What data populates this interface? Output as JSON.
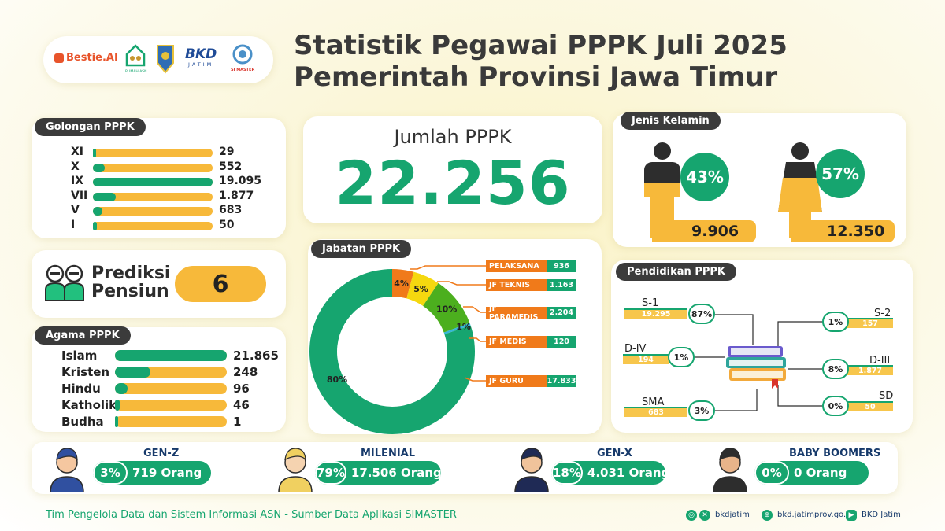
{
  "header": {
    "title_line1": "Statistik Pegawai PPPK Juli 2025",
    "title_line2": "Pemerintah Provinsi Jawa Timur",
    "logos": {
      "bestie": "Bestie.AI",
      "rumah_asn": "RUMAH ASN",
      "bkd_top": "BKD",
      "bkd_bottom": "JATIM",
      "simaster": "SI MASTER"
    }
  },
  "golongan": {
    "tag": "Golongan PPPK",
    "items": [
      {
        "label": "XI",
        "value": "29",
        "fraction": 0.01
      },
      {
        "label": "X",
        "value": "552",
        "fraction": 0.1
      },
      {
        "label": "IX",
        "value": "19.095",
        "fraction": 1.0
      },
      {
        "label": "VII",
        "value": "1.877",
        "fraction": 0.19
      },
      {
        "label": "V",
        "value": "683",
        "fraction": 0.08
      },
      {
        "label": "I",
        "value": "50",
        "fraction": 0.03
      }
    ]
  },
  "jumlah": {
    "label": "Jumlah PPPK",
    "value": "22.256"
  },
  "gender": {
    "tag": "Jenis Kelamin",
    "male": {
      "pct": "43%",
      "count": "9.906",
      "icon": "male-person-icon"
    },
    "female": {
      "pct": "57%",
      "count": "12.350",
      "icon": "female-person-icon"
    }
  },
  "pensiun": {
    "line1": "Prediksi",
    "line2": "Pensiun",
    "value": "6",
    "icon": "retirees-icon"
  },
  "jabatan": {
    "tag": "Jabatan PPPK",
    "items": [
      {
        "label": "PELAKSANA",
        "value": "936"
      },
      {
        "label": "JF TEKNIS",
        "value": "1.163"
      },
      {
        "label": "JF PARAMEDIS",
        "value": "2.204"
      },
      {
        "label": "JF MEDIS",
        "value": "120"
      },
      {
        "label": "JF GURU",
        "value": "17.833"
      }
    ]
  },
  "agama": {
    "tag": "Agama PPPK",
    "items": [
      {
        "label": "Islam",
        "value": "21.865",
        "fraction": 1.0
      },
      {
        "label": "Kristen",
        "value": "248",
        "fraction": 0.32
      },
      {
        "label": "Hindu",
        "value": "96",
        "fraction": 0.11
      },
      {
        "label": "Katholik",
        "value": "46",
        "fraction": 0.04
      },
      {
        "label": "Budha",
        "value": "1",
        "fraction": 0.0
      }
    ]
  },
  "pendidikan": {
    "tag": "Pendidikan PPPK",
    "left": [
      {
        "label": "S-1",
        "value": "19.295",
        "pct": "87%"
      },
      {
        "label": "D-IV",
        "value": "194",
        "pct": "1%"
      },
      {
        "label": "SMA",
        "value": "683",
        "pct": "3%"
      }
    ],
    "right": [
      {
        "label": "S-2",
        "value": "157",
        "pct": "1%"
      },
      {
        "label": "D-III",
        "value": "1.877",
        "pct": "8%"
      },
      {
        "label": "SD",
        "value": "50",
        "pct": "0%"
      }
    ],
    "icon": "books-icon"
  },
  "generations": [
    {
      "label": "GEN-Z",
      "pct": "3%",
      "count": "719 Orang",
      "icon": "genz-avatar-icon"
    },
    {
      "label": "MILENIAL",
      "pct": "79%",
      "count": "17.506 Orang",
      "icon": "millennial-avatar-icon"
    },
    {
      "label": "GEN-X",
      "pct": "18%",
      "count": "4.031 Orang",
      "icon": "genx-avatar-icon"
    },
    {
      "label": "BABY BOOMERS",
      "pct": "0%",
      "count": "0 Orang",
      "icon": "boomer-avatar-icon"
    }
  ],
  "footer": {
    "text": "Tim Pengelola Data dan Sistem Informasi ASN - Sumber Data Aplikasi SIMASTER",
    "social_handle": "bkdjatim",
    "website": "bkd.jatimprov.go.id",
    "youtube": "BKD Jatim"
  },
  "colors": {
    "green": "#16a56f",
    "orange": "#f07a1a",
    "yellow": "#f7b93a",
    "dark": "#3b3b3b"
  },
  "chart_data": {
    "type": "pie",
    "title": "Jabatan PPPK",
    "categories": [
      "PELAKSANA",
      "JF TEKNIS",
      "JF PARAMEDIS",
      "JF MEDIS",
      "JF GURU"
    ],
    "values": [
      936,
      1163,
      2204,
      120,
      17833
    ],
    "percent_labels": [
      "4%",
      "5%",
      "10%",
      "1%",
      "80%"
    ],
    "colors": [
      "#f07a1a",
      "#f5d80f",
      "#4caf1e",
      "#35b7d6",
      "#16a56f"
    ]
  }
}
